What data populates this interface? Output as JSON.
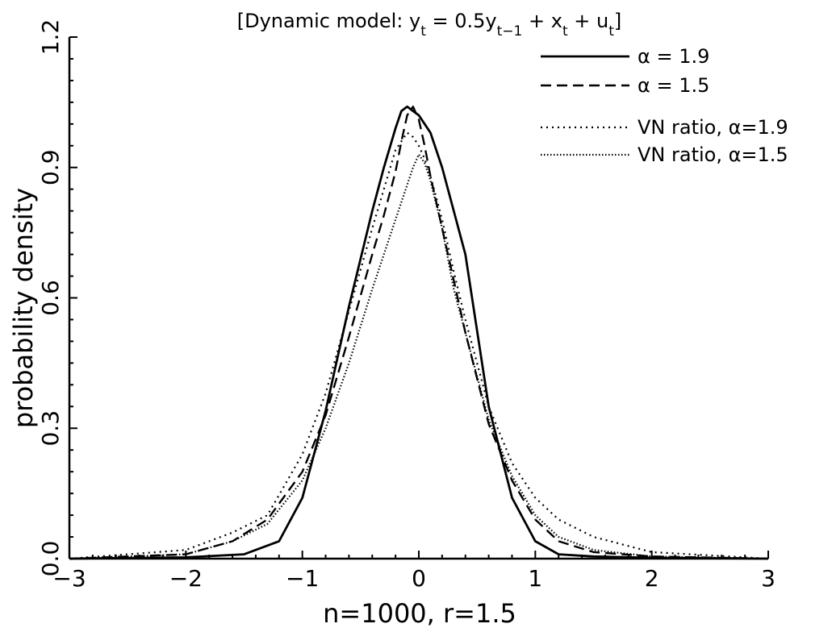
{
  "chart_data": {
    "type": "line",
    "title": "[Dynamic model:  y_t = 0.5y_{t-1} + x_t + u_t]",
    "title_parts": {
      "prefix": "[Dynamic model:  y",
      "sub1": "t",
      "eq": " = 0.5y",
      "sub2": "t−1",
      "plus_x": " + x",
      "sub3": "t",
      "plus_u": " + u",
      "sub4": "t",
      "suffix": "]"
    },
    "xlabel": "n=1000,  r=1.5",
    "ylabel": "probability density",
    "xlim": [
      -3,
      3
    ],
    "ylim": [
      0,
      1.2
    ],
    "xticks": [
      -3,
      -2,
      -1,
      0,
      1,
      2,
      3
    ],
    "xtick_labels": [
      "−3",
      "−2",
      "−1",
      "0",
      "1",
      "2",
      "3"
    ],
    "yticks": [
      0,
      0.3,
      0.6,
      0.9,
      1.2
    ],
    "ytick_labels": [
      "0.0",
      "0.3",
      "0.6",
      "0.9",
      "1.2"
    ],
    "grid": false,
    "legend_position": "top-right",
    "series": [
      {
        "name": "α = 1.9",
        "style": "solid",
        "x": [
          -3.0,
          -2.0,
          -1.5,
          -1.2,
          -1.0,
          -0.8,
          -0.6,
          -0.4,
          -0.3,
          -0.2,
          -0.15,
          -0.1,
          -0.05,
          0.0,
          0.05,
          0.1,
          0.2,
          0.3,
          0.4,
          0.6,
          0.8,
          1.0,
          1.2,
          1.5,
          2.0,
          3.0
        ],
        "y": [
          0.0,
          0.003,
          0.01,
          0.04,
          0.14,
          0.34,
          0.58,
          0.8,
          0.9,
          0.99,
          1.03,
          1.04,
          1.03,
          1.02,
          1.0,
          0.98,
          0.9,
          0.8,
          0.7,
          0.35,
          0.14,
          0.04,
          0.01,
          0.005,
          0.002,
          0.0
        ]
      },
      {
        "name": "α = 1.5",
        "style": "dashed",
        "x": [
          -3.0,
          -2.0,
          -1.6,
          -1.3,
          -1.0,
          -0.8,
          -0.6,
          -0.4,
          -0.3,
          -0.2,
          -0.15,
          -0.1,
          -0.05,
          0.0,
          0.05,
          0.1,
          0.2,
          0.3,
          0.4,
          0.6,
          0.8,
          1.0,
          1.2,
          1.5,
          2.0,
          3.0
        ],
        "y": [
          0.0,
          0.01,
          0.04,
          0.09,
          0.2,
          0.33,
          0.51,
          0.7,
          0.79,
          0.89,
          0.96,
          1.02,
          1.04,
          1.01,
          0.95,
          0.88,
          0.76,
          0.64,
          0.52,
          0.31,
          0.18,
          0.09,
          0.04,
          0.015,
          0.005,
          0.0
        ]
      },
      {
        "name": "VN ratio, α=1.9",
        "style": "dotted",
        "x": [
          -3.0,
          -2.0,
          -1.6,
          -1.3,
          -1.0,
          -0.8,
          -0.6,
          -0.4,
          -0.3,
          -0.2,
          -0.1,
          -0.05,
          0.0,
          0.05,
          0.1,
          0.2,
          0.3,
          0.4,
          0.6,
          0.8,
          1.0,
          1.2,
          1.5,
          2.0,
          3.0
        ],
        "y": [
          0.0,
          0.02,
          0.06,
          0.1,
          0.24,
          0.38,
          0.57,
          0.76,
          0.85,
          0.94,
          0.98,
          0.97,
          0.95,
          0.92,
          0.88,
          0.78,
          0.66,
          0.55,
          0.35,
          0.22,
          0.14,
          0.09,
          0.05,
          0.015,
          0.0
        ]
      },
      {
        "name": "VN ratio, α=1.5",
        "style": "fine-dotted",
        "x": [
          -3.0,
          -2.0,
          -1.6,
          -1.3,
          -1.0,
          -0.8,
          -0.6,
          -0.4,
          -0.3,
          -0.2,
          -0.1,
          -0.05,
          0.0,
          0.05,
          0.1,
          0.2,
          0.3,
          0.4,
          0.6,
          0.8,
          1.0,
          1.2,
          1.5,
          2.0,
          3.0
        ],
        "y": [
          0.0,
          0.01,
          0.04,
          0.08,
          0.18,
          0.3,
          0.45,
          0.62,
          0.7,
          0.78,
          0.86,
          0.9,
          0.93,
          0.91,
          0.87,
          0.76,
          0.62,
          0.52,
          0.32,
          0.19,
          0.1,
          0.05,
          0.02,
          0.005,
          0.0
        ]
      }
    ]
  }
}
